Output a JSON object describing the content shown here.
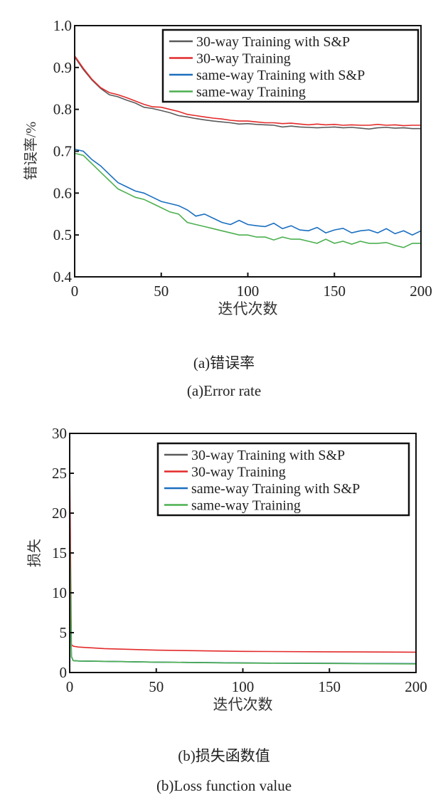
{
  "chart_data": [
    {
      "type": "line",
      "title": "",
      "xlabel": "迭代次数",
      "ylabel": "错误率/%",
      "xlim": [
        0,
        200
      ],
      "ylim": [
        0.4,
        1.0
      ],
      "xticks": [
        "0",
        "50",
        "100",
        "150",
        "200"
      ],
      "yticks": [
        "0.4",
        "0.5",
        "0.6",
        "0.7",
        "0.8",
        "0.9",
        "1.0"
      ],
      "legend_position": "top-right",
      "x": [
        0,
        5,
        10,
        15,
        20,
        25,
        30,
        35,
        40,
        45,
        50,
        55,
        60,
        65,
        70,
        75,
        80,
        85,
        90,
        95,
        100,
        105,
        110,
        115,
        120,
        125,
        130,
        135,
        140,
        145,
        150,
        155,
        160,
        165,
        170,
        175,
        180,
        185,
        190,
        195,
        200
      ],
      "series": [
        {
          "name": "30-way Training with S&P",
          "color": "#5a5a5a",
          "values": [
            0.925,
            0.895,
            0.87,
            0.85,
            0.835,
            0.83,
            0.822,
            0.815,
            0.805,
            0.802,
            0.797,
            0.792,
            0.785,
            0.782,
            0.778,
            0.775,
            0.772,
            0.77,
            0.768,
            0.765,
            0.766,
            0.764,
            0.763,
            0.762,
            0.758,
            0.76,
            0.758,
            0.757,
            0.756,
            0.757,
            0.758,
            0.756,
            0.757,
            0.755,
            0.753,
            0.756,
            0.757,
            0.755,
            0.756,
            0.754,
            0.754
          ]
        },
        {
          "name": "30-way Training",
          "color": "#e32a2a",
          "values": [
            0.928,
            0.898,
            0.872,
            0.852,
            0.84,
            0.835,
            0.828,
            0.82,
            0.812,
            0.806,
            0.805,
            0.8,
            0.795,
            0.788,
            0.785,
            0.782,
            0.779,
            0.777,
            0.774,
            0.772,
            0.772,
            0.77,
            0.768,
            0.768,
            0.766,
            0.767,
            0.765,
            0.763,
            0.765,
            0.763,
            0.764,
            0.762,
            0.763,
            0.762,
            0.762,
            0.764,
            0.762,
            0.763,
            0.761,
            0.762,
            0.762
          ]
        },
        {
          "name": "same-way Training with S&P",
          "color": "#1b6fc0",
          "values": [
            0.705,
            0.7,
            0.68,
            0.665,
            0.645,
            0.625,
            0.615,
            0.605,
            0.6,
            0.59,
            0.58,
            0.575,
            0.57,
            0.56,
            0.545,
            0.55,
            0.54,
            0.53,
            0.525,
            0.535,
            0.525,
            0.522,
            0.52,
            0.528,
            0.515,
            0.522,
            0.512,
            0.51,
            0.518,
            0.505,
            0.512,
            0.516,
            0.505,
            0.51,
            0.512,
            0.505,
            0.515,
            0.503,
            0.51,
            0.5,
            0.51
          ]
        },
        {
          "name": "same-way Training",
          "color": "#4cb050",
          "values": [
            0.695,
            0.69,
            0.67,
            0.65,
            0.63,
            0.61,
            0.6,
            0.59,
            0.585,
            0.575,
            0.565,
            0.555,
            0.55,
            0.53,
            0.525,
            0.52,
            0.515,
            0.51,
            0.505,
            0.5,
            0.5,
            0.495,
            0.495,
            0.488,
            0.495,
            0.49,
            0.49,
            0.485,
            0.48,
            0.49,
            0.48,
            0.485,
            0.478,
            0.485,
            0.48,
            0.48,
            0.482,
            0.475,
            0.47,
            0.48,
            0.48
          ]
        }
      ]
    },
    {
      "type": "line",
      "title": "",
      "xlabel": "迭代次数",
      "ylabel": "损失",
      "xlim": [
        0,
        200
      ],
      "ylim": [
        0,
        30
      ],
      "xticks": [
        "0",
        "50",
        "100",
        "150",
        "200"
      ],
      "yticks": [
        "0",
        "5",
        "10",
        "15",
        "20",
        "25",
        "30"
      ],
      "legend_position": "top-right",
      "x": [
        0,
        1,
        2,
        5,
        20,
        50,
        100,
        150,
        200
      ],
      "series": [
        {
          "name": "30-way Training with S&P",
          "color": "#5a5a5a",
          "values": [
            18.5,
            2.0,
            1.5,
            1.45,
            1.4,
            1.3,
            1.2,
            1.15,
            1.1
          ]
        },
        {
          "name": "30-way Training",
          "color": "#e32a2a",
          "values": [
            26.3,
            3.5,
            3.3,
            3.2,
            3.0,
            2.8,
            2.65,
            2.6,
            2.55
          ]
        },
        {
          "name": "same-way Training with S&P",
          "color": "#1b6fc0",
          "values": [
            18.5,
            2.0,
            1.5,
            1.45,
            1.4,
            1.3,
            1.2,
            1.15,
            1.12
          ]
        },
        {
          "name": "same-way Training",
          "color": "#4cb050",
          "values": [
            18.5,
            2.0,
            1.5,
            1.45,
            1.4,
            1.3,
            1.18,
            1.13,
            1.08
          ]
        }
      ]
    }
  ],
  "captions": {
    "a_cn": "(a)错误率",
    "a_en": "(a)Error rate",
    "b_cn": "(b)损失函数值",
    "b_en": "(b)Loss function value"
  }
}
